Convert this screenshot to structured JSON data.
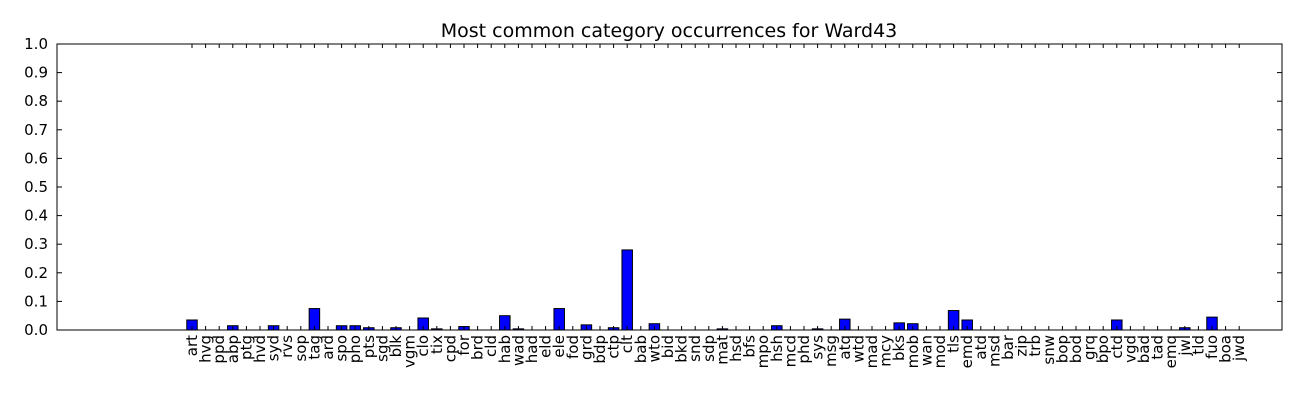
{
  "chart_data": {
    "type": "bar",
    "title": "Most common category occurrences for Ward43",
    "xlabel": "",
    "ylabel": "",
    "ylim": [
      0,
      1.0
    ],
    "yticks": [
      "0.0",
      "0.1",
      "0.2",
      "0.3",
      "0.4",
      "0.5",
      "0.6",
      "0.7",
      "0.8",
      "0.9",
      "1.0"
    ],
    "grid": false,
    "bar_color": "#0000ff",
    "categories": [
      "art",
      "hvg",
      "ppd",
      "abp",
      "ptg",
      "hvd",
      "syd",
      "rvs",
      "sop",
      "tag",
      "ard",
      "spo",
      "pho",
      "pts",
      "sgd",
      "blk",
      "vgm",
      "clo",
      "tix",
      "cpd",
      "for",
      "brd",
      "cld",
      "hab",
      "wad",
      "had",
      "eld",
      "ele",
      "fod",
      "grd",
      "bdp",
      "ctp",
      "clt",
      "bab",
      "wto",
      "bid",
      "bkd",
      "snd",
      "sdp",
      "mat",
      "hsd",
      "bfs",
      "mpo",
      "hsh",
      "mcd",
      "phd",
      "sys",
      "msg",
      "atq",
      "wtd",
      "mad",
      "mcy",
      "bks",
      "mob",
      "wan",
      "mod",
      "tls",
      "emd",
      "atd",
      "msd",
      "bar",
      "zip",
      "trb",
      "snw",
      "bop",
      "bod",
      "grq",
      "bpo",
      "ctd",
      "vgd",
      "bad",
      "tad",
      "emq",
      "jwl",
      "tld",
      "fuo",
      "boa",
      "jwd"
    ],
    "values": [
      0.035,
      0,
      0,
      0.015,
      0,
      0,
      0.015,
      0,
      0,
      0.075,
      0,
      0.015,
      0.015,
      0.008,
      0,
      0.008,
      0,
      0.042,
      0.004,
      0,
      0.012,
      0,
      0,
      0.05,
      0.004,
      0,
      0,
      0.075,
      0,
      0.018,
      0,
      0.008,
      0.28,
      0,
      0.022,
      0,
      0,
      0,
      0,
      0.004,
      0,
      0,
      0,
      0.015,
      0,
      0,
      0.004,
      0,
      0.038,
      0,
      0,
      0,
      0.025,
      0.022,
      0,
      0,
      0.068,
      0.035,
      0,
      0,
      0,
      0,
      0,
      0,
      0,
      0,
      0,
      0,
      0.035,
      0,
      0,
      0,
      0,
      0.008,
      0,
      0.045,
      0,
      0
    ]
  }
}
